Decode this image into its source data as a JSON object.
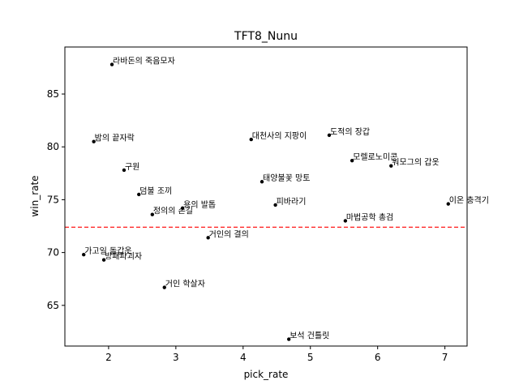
{
  "chart_data": {
    "type": "scatter",
    "title": "TFT8_Nunu",
    "xlabel": "pick_rate",
    "ylabel": "win_rate",
    "xlim": [
      1.35,
      7.33
    ],
    "ylim": [
      61.15,
      89.45
    ],
    "xticks": [
      2,
      3,
      4,
      5,
      6,
      7
    ],
    "yticks": [
      65,
      70,
      75,
      80,
      85
    ],
    "grid": false,
    "reference_line": {
      "y": 72.4,
      "color": "#ff0000",
      "style": "dashed"
    },
    "points": [
      {
        "label": "라바돈의 죽음모자",
        "x": 2.05,
        "y": 87.8
      },
      {
        "label": "밤의 끝자락",
        "x": 1.78,
        "y": 80.5
      },
      {
        "label": "구원",
        "x": 2.23,
        "y": 77.8
      },
      {
        "label": "덤불 조끼",
        "x": 2.45,
        "y": 75.5
      },
      {
        "label": "정의의 손길",
        "x": 2.65,
        "y": 73.6
      },
      {
        "label": "용의 발톱",
        "x": 3.1,
        "y": 74.2
      },
      {
        "label": "거인의 결의",
        "x": 3.48,
        "y": 71.4
      },
      {
        "label": "가고일 돌갑옷",
        "x": 1.63,
        "y": 69.8
      },
      {
        "label": "방패파괴자",
        "x": 1.93,
        "y": 69.3
      },
      {
        "label": "거인 학살자",
        "x": 2.83,
        "y": 66.7
      },
      {
        "label": "대천사의 지팡이",
        "x": 4.12,
        "y": 80.7
      },
      {
        "label": "도적의 장갑",
        "x": 5.28,
        "y": 81.1
      },
      {
        "label": "태양불꽃 망토",
        "x": 4.28,
        "y": 76.7
      },
      {
        "label": "피바라기",
        "x": 4.48,
        "y": 74.5
      },
      {
        "label": "모렐로노미콘",
        "x": 5.62,
        "y": 78.7
      },
      {
        "label": "워모그의 갑옷",
        "x": 6.2,
        "y": 78.2
      },
      {
        "label": "이온 충격기",
        "x": 7.05,
        "y": 74.6
      },
      {
        "label": "마법공학 총검",
        "x": 5.52,
        "y": 73.0
      },
      {
        "label": "보석 건틀릿",
        "x": 4.68,
        "y": 61.8
      }
    ],
    "colors": {
      "points": "#000000",
      "reference": "#ff0000"
    }
  }
}
